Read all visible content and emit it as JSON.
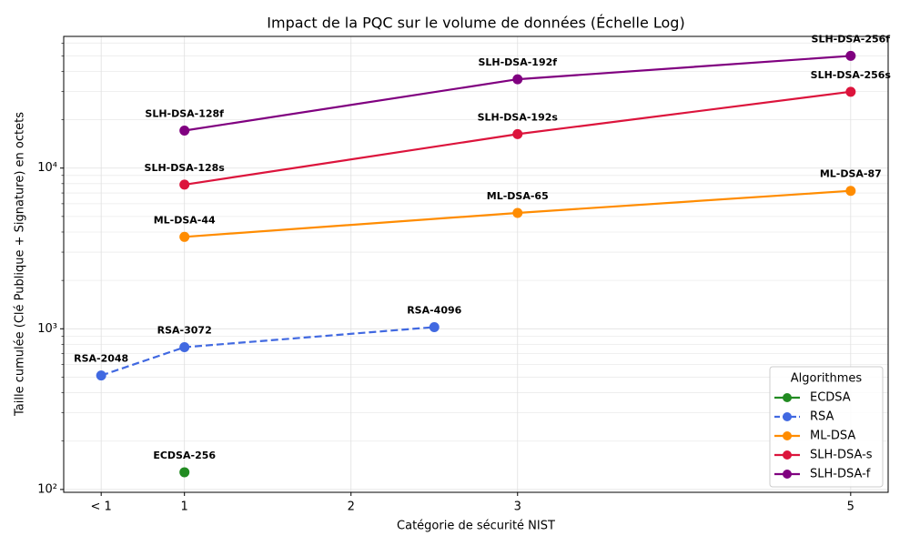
{
  "chart_data": {
    "type": "line",
    "title": "Impact de la PQC sur le volume de données (Échelle Log)",
    "xlabel": "Catégorie de sécurité NIST",
    "ylabel": "Taille cumulée (Clé Publique + Signature) en octets",
    "xlim": [
      0.275,
      5.225
    ],
    "xticks": [
      {
        "value": 0.5,
        "label": "< 1"
      },
      1,
      2,
      3,
      5
    ],
    "ylim": [
      96,
      66000
    ],
    "yticks": [
      {
        "value": 100,
        "label": "10²"
      },
      {
        "value": 1000,
        "label": "10³"
      },
      {
        "value": 10000,
        "label": "10⁴"
      }
    ],
    "yscale": "log",
    "grid": true,
    "legend": {
      "title": "Algorithmes",
      "loc": "lower right"
    },
    "series": [
      {
        "name": "ECDSA",
        "color": "#228b22",
        "linestyle": "solid",
        "x": [
          1
        ],
        "values": [
          128
        ],
        "labels": [
          "ECDSA-256"
        ]
      },
      {
        "name": "RSA",
        "color": "#4169e1",
        "linestyle": "dashed",
        "x": [
          0.5,
          1,
          2.5
        ],
        "values": [
          512,
          768,
          1024
        ],
        "labels": [
          "RSA-2048",
          "RSA-3072",
          "RSA-4096"
        ]
      },
      {
        "name": "ML-DSA",
        "color": "#ff8c00",
        "linestyle": "solid",
        "x": [
          1,
          3,
          5
        ],
        "values": [
          3732,
          5261,
          7219
        ],
        "labels": [
          "ML-DSA-44",
          "ML-DSA-65",
          "ML-DSA-87"
        ]
      },
      {
        "name": "SLH-DSA-s",
        "color": "#dc143c",
        "linestyle": "solid",
        "x": [
          1,
          3,
          5
        ],
        "values": [
          7888,
          16272,
          29856
        ],
        "labels": [
          "SLH-DSA-128s",
          "SLH-DSA-192s",
          "SLH-DSA-256s"
        ]
      },
      {
        "name": "SLH-DSA-f",
        "color": "#800080",
        "linestyle": "solid",
        "x": [
          1,
          3,
          5
        ],
        "values": [
          17120,
          35712,
          49920
        ],
        "labels": [
          "SLH-DSA-128f",
          "SLH-DSA-192f",
          "SLH-DSA-256f"
        ]
      }
    ]
  }
}
